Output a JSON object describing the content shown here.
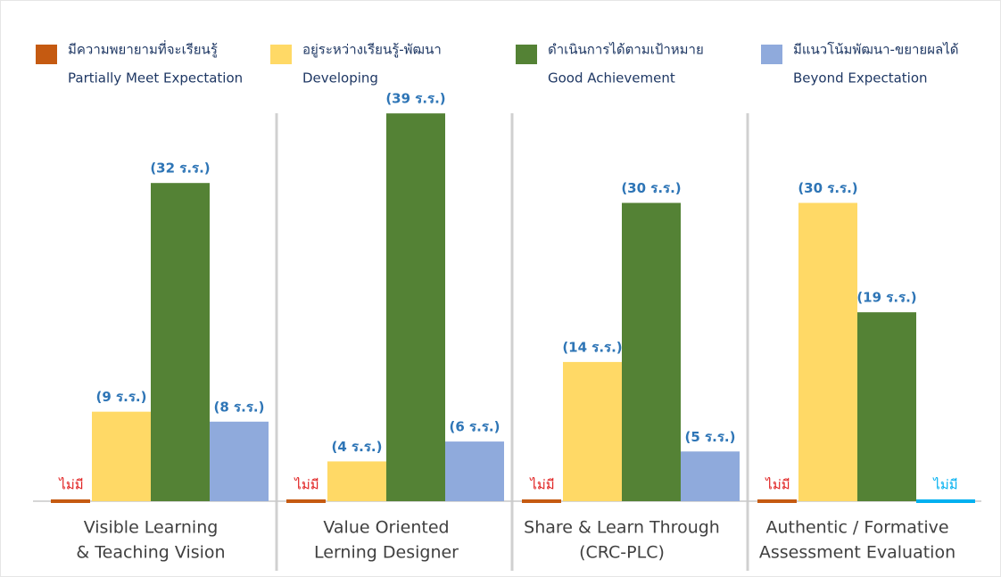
{
  "chart_data": {
    "type": "bar",
    "categories": [
      [
        "Visible Learning",
        "& Teaching Vision"
      ],
      [
        "Value Oriented",
        "Lerning Designer"
      ],
      [
        "Share & Learn Through",
        "(CRC-PLC)"
      ],
      [
        "Authentic / Formative",
        "Assessment Evaluation"
      ]
    ],
    "series": [
      {
        "name": "มีความพยายามที่จะเรียนรู้",
        "name_en": "Partially Meet Expectation",
        "color": "#c55a11",
        "label_color": "#e02020",
        "values": [
          0,
          0,
          0,
          0
        ],
        "value_labels": [
          "ไม่มี",
          "ไม่มี",
          "ไม่มี",
          "ไม่มี"
        ]
      },
      {
        "name": "อยู่ระหว่างเรียนรู้-พัฒนา",
        "name_en": "Developing",
        "color": "#ffd966",
        "label_color": "#2e75b6",
        "values": [
          9,
          4,
          14,
          30
        ],
        "value_labels": [
          "(9 ร.ร.)",
          "(4 ร.ร.)",
          "(14 ร.ร.)",
          "(30 ร.ร.)"
        ]
      },
      {
        "name": "ดำเนินการได้ตามเป้าหมาย",
        "name_en": "Good Achievement",
        "color": "#548235",
        "label_color": "#2e75b6",
        "values": [
          32,
          39,
          30,
          19
        ],
        "value_labels": [
          "(32 ร.ร.)",
          "(39 ร.ร.)",
          "(30 ร.ร.)",
          "(19 ร.ร.)"
        ]
      },
      {
        "name": "มีแนวโน้มพัฒนา-ขยายผลได้",
        "name_en": "Beyond Expectation",
        "color": "#8faadc",
        "label_color": "#2e75b6",
        "values": [
          8,
          6,
          5,
          0
        ],
        "value_labels": [
          "(8 ร.ร.)",
          "(6 ร.ร.)",
          "(5 ร.ร.)",
          "ไม่มี"
        ]
      }
    ],
    "ylim": [
      0,
      40
    ]
  }
}
